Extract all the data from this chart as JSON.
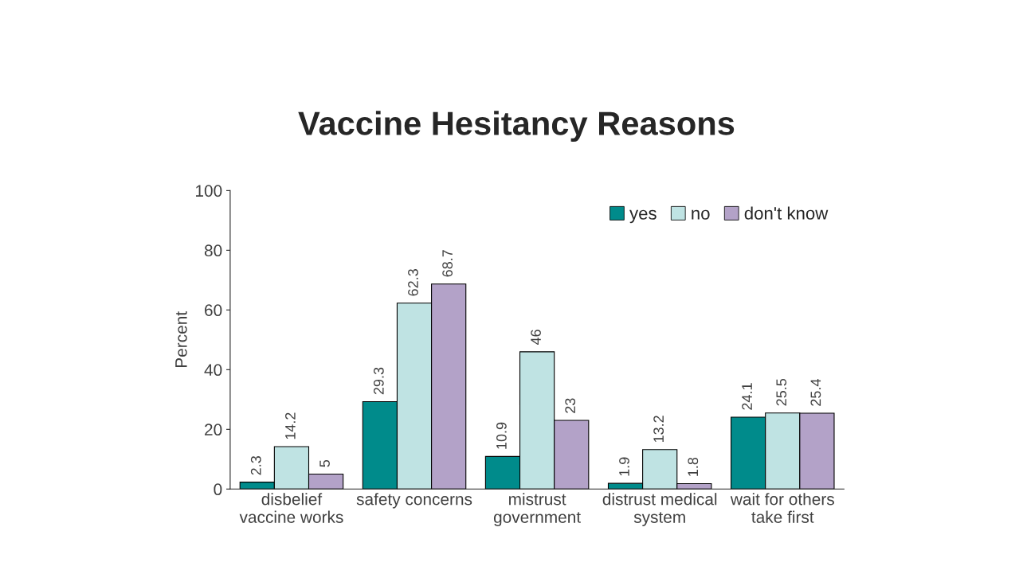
{
  "chart_data": {
    "type": "bar",
    "title": "Vaccine Hesitancy Reasons",
    "ylabel": "Percent",
    "categories": [
      "disbelief\nvaccine works",
      "safety concerns",
      "mistrust\ngovernment",
      "distrust medical\nsystem",
      "wait for others\ntake first"
    ],
    "series": [
      {
        "name": "yes",
        "color": "#008b8b",
        "values": [
          2.3,
          29.3,
          10.9,
          1.9,
          24.1
        ]
      },
      {
        "name": "no",
        "color": "#bfe3e3",
        "values": [
          14.2,
          62.3,
          46,
          13.2,
          25.5
        ]
      },
      {
        "name": "don't know",
        "color": "#b3a2c8",
        "values": [
          5,
          68.7,
          23,
          1.8,
          25.4
        ]
      }
    ],
    "ylim": [
      0,
      100
    ],
    "yticks": [
      0,
      20,
      40,
      60,
      80,
      100
    ],
    "data_labels": true,
    "legend": "top right",
    "grid": false
  }
}
